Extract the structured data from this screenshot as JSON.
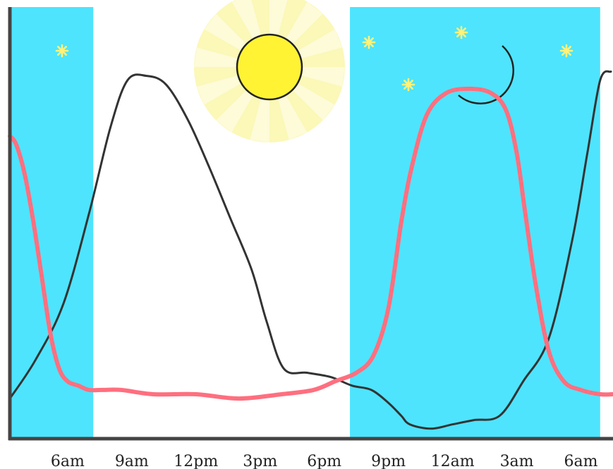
{
  "chart_data": {
    "type": "line",
    "title": "",
    "xlabel": "",
    "ylabel": "",
    "x_unit": "hours",
    "xlim": [
      3.3,
      31.5
    ],
    "ylim": [
      0,
      1
    ],
    "grid": false,
    "legend": "none",
    "ticks": [
      {
        "x": 6,
        "label": "6am"
      },
      {
        "x": 9,
        "label": "9am"
      },
      {
        "x": 12,
        "label": "12pm"
      },
      {
        "x": 15,
        "label": "3pm"
      },
      {
        "x": 18,
        "label": "6pm"
      },
      {
        "x": 21,
        "label": "9pm"
      },
      {
        "x": 24,
        "label": "12am"
      },
      {
        "x": 27,
        "label": "3am"
      },
      {
        "x": 30,
        "label": "6am"
      }
    ],
    "night_bands": [
      {
        "start": 3.3,
        "end": 7.2
      },
      {
        "start": 19.2,
        "end": 30.9
      }
    ],
    "series": [
      {
        "name": "",
        "color": "#333333",
        "x": [
          3.3,
          4.5,
          5.8,
          7.0,
          8.0,
          8.8,
          9.7,
          10.6,
          11.6,
          12.6,
          13.6,
          14.6,
          15.3,
          16.1,
          17.2,
          18.3,
          19.3,
          20.2,
          21.0,
          21.6,
          22.0,
          23.0,
          24.0,
          25.0,
          26.2,
          27.3,
          28.5,
          29.6,
          30.3,
          30.9,
          31.4
        ],
        "values": [
          0.09,
          0.18,
          0.31,
          0.52,
          0.72,
          0.83,
          0.84,
          0.82,
          0.74,
          0.63,
          0.51,
          0.39,
          0.27,
          0.16,
          0.15,
          0.14,
          0.12,
          0.11,
          0.08,
          0.05,
          0.03,
          0.02,
          0.03,
          0.04,
          0.05,
          0.13,
          0.23,
          0.46,
          0.66,
          0.83,
          0.85
        ]
      },
      {
        "name": "",
        "color": "#ff6f7f",
        "x": [
          3.3,
          3.6,
          4.0,
          4.4,
          4.8,
          5.2,
          5.6,
          6.0,
          6.5,
          7.0,
          7.6,
          8.5,
          10.0,
          12.0,
          14.0,
          16.0,
          17.5,
          18.5,
          19.5,
          20.3,
          21.0,
          21.6,
          22.1,
          22.8,
          23.7,
          24.8,
          25.8,
          26.5,
          27.0,
          27.4,
          27.9,
          28.5,
          29.2,
          30.0,
          30.9,
          31.5
        ],
        "values": [
          0.7,
          0.68,
          0.61,
          0.5,
          0.37,
          0.24,
          0.16,
          0.13,
          0.12,
          0.11,
          0.11,
          0.11,
          0.1,
          0.1,
          0.09,
          0.1,
          0.11,
          0.13,
          0.15,
          0.19,
          0.3,
          0.5,
          0.63,
          0.75,
          0.8,
          0.81,
          0.8,
          0.76,
          0.66,
          0.52,
          0.35,
          0.2,
          0.13,
          0.11,
          0.1,
          0.1
        ]
      }
    ]
  },
  "decor": {
    "band_color": "#4ee4fd",
    "sun_color": "#fff333",
    "sun_glow_color": "#fbf8b4",
    "moon_color": "#ffffff",
    "star_color": "#fff27a",
    "axis_color": "#444444"
  }
}
